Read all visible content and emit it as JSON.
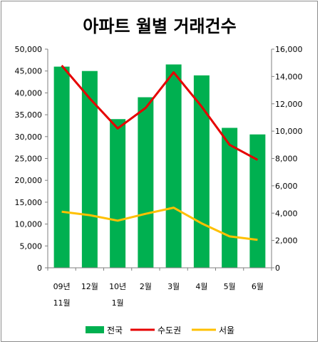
{
  "chart_data": {
    "type": "bar+line",
    "title": "아파트 월별 거래건수",
    "categories": [
      [
        "09년",
        "11월"
      ],
      [
        "12월"
      ],
      [
        "10년",
        "1월"
      ],
      [
        "2월"
      ],
      [
        "3월"
      ],
      [
        "4월"
      ],
      [
        "5월"
      ],
      [
        "6월"
      ]
    ],
    "y_left": {
      "ylim": [
        0,
        50000
      ],
      "ticks": [
        "0",
        "5,000",
        "10,000",
        "15,000",
        "20,000",
        "25,000",
        "30,000",
        "35,000",
        "40,000",
        "45,000",
        "50,000"
      ]
    },
    "y_right": {
      "ylim": [
        0,
        16000
      ],
      "ticks": [
        "0",
        "2,000",
        "4,000",
        "6,000",
        "8,000",
        "10,000",
        "12,000",
        "14,000",
        "16,000"
      ]
    },
    "series": [
      {
        "name": "전국",
        "kind": "bar",
        "axis": "left",
        "color": "#00b050",
        "values": [
          46000,
          45000,
          34000,
          39000,
          46500,
          44000,
          32000,
          30500
        ]
      },
      {
        "name": "수도권",
        "kind": "line",
        "axis": "right",
        "color": "#e60000",
        "values": [
          14800,
          12400,
          10200,
          11700,
          14300,
          11800,
          9000,
          7900
        ]
      },
      {
        "name": "서울",
        "kind": "line",
        "axis": "right",
        "color": "#ffc000",
        "values": [
          4100,
          3850,
          3450,
          3950,
          4400,
          3250,
          2300,
          2050
        ]
      }
    ],
    "grid": false,
    "legend_position": "bottom"
  }
}
